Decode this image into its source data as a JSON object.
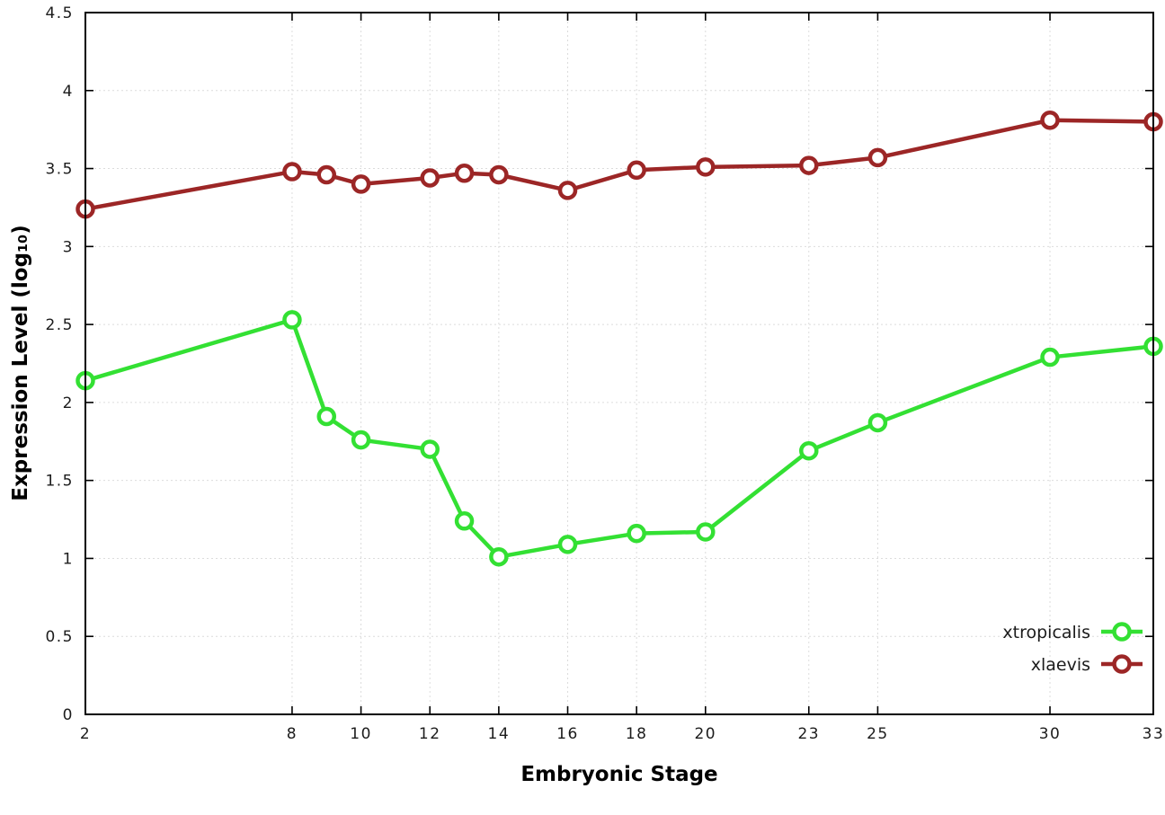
{
  "chart_data": {
    "type": "line",
    "title": "",
    "xlabel": "Embryonic Stage",
    "ylabel": "Expression Level (log₁₀)",
    "x": [
      2,
      8,
      9,
      10,
      12,
      13,
      14,
      16,
      18,
      20,
      23,
      25,
      30,
      33
    ],
    "series": [
      {
        "name": "xtropicalis",
        "color": "#33e033",
        "values": [
          2.14,
          2.53,
          1.91,
          1.76,
          1.7,
          1.24,
          1.01,
          1.09,
          1.16,
          1.17,
          1.69,
          1.87,
          2.29,
          2.36
        ]
      },
      {
        "name": "xlaevis",
        "color": "#9c2626",
        "values": [
          3.24,
          3.48,
          3.46,
          3.4,
          3.44,
          3.47,
          3.46,
          3.36,
          3.49,
          3.51,
          3.52,
          3.57,
          3.81,
          3.8
        ]
      }
    ],
    "xlim": [
      2,
      33
    ],
    "ylim": [
      0,
      4.5
    ],
    "xticks": [
      2,
      8,
      10,
      12,
      14,
      16,
      18,
      20,
      23,
      25,
      30,
      33
    ],
    "yticks": [
      0,
      0.5,
      1,
      1.5,
      2,
      2.5,
      3,
      3.5,
      4,
      4.5
    ],
    "grid": true,
    "legend_position": "bottom-right",
    "marker": "open-circle",
    "background_color": "#ffffff",
    "border_color": "#000000"
  }
}
